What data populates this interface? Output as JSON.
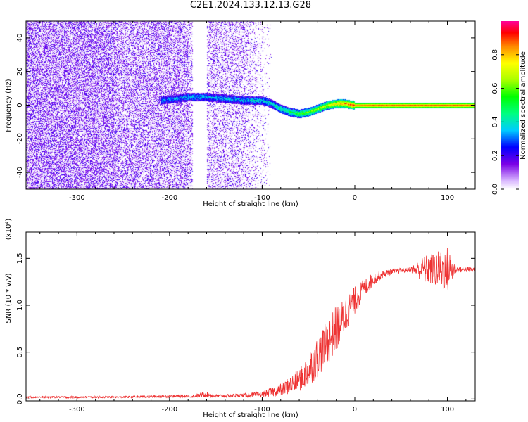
{
  "figure": {
    "title": "C2E1.2024.133.12.13.G28"
  },
  "chart_data": [
    {
      "type": "heatmap",
      "title": "C2E1.2024.133.12.13.G28",
      "xlabel": "Height of straight line (km)",
      "ylabel": "Frequency (Hz)",
      "xlim": [
        -355,
        130
      ],
      "ylim": [
        -50,
        50
      ],
      "xticks": [
        -300,
        -200,
        -100,
        0,
        100
      ],
      "xtick_labels": [
        "-300",
        "-200",
        "-100",
        "0",
        "100"
      ],
      "yticks": [
        -40,
        -20,
        0,
        20,
        40
      ],
      "ytick_labels": [
        "-40",
        "-20",
        "0",
        "20",
        "40"
      ],
      "colorbar": {
        "label": "Normalized spectral amplitude",
        "range": [
          0,
          1
        ],
        "ticks": [
          0.0,
          0.2,
          0.4,
          0.6,
          0.8
        ],
        "tick_labels": [
          "0.0",
          "0.2",
          "0.4",
          "0.6",
          "0.8"
        ]
      },
      "features": {
        "noise_region": {
          "x_range": [
            -355,
            -100
          ],
          "amplitude": "0.1-0.3",
          "gap_x_range": [
            -175,
            -160
          ]
        },
        "line_track": {
          "x": [
            -210,
            -180,
            -160,
            -140,
            -120,
            -100,
            -90,
            -80,
            -70,
            -60,
            -50,
            -40,
            -30,
            -20,
            -10,
            0,
            20,
            50,
            80,
            100,
            130
          ],
          "y": [
            3,
            5,
            5,
            4,
            3,
            3,
            1,
            -2,
            -4,
            -5,
            -4,
            -2,
            0,
            1,
            1,
            0,
            0,
            0,
            0,
            0,
            0
          ],
          "amplitude": [
            0.3,
            0.35,
            0.35,
            0.35,
            0.35,
            0.4,
            0.4,
            0.45,
            0.5,
            0.55,
            0.6,
            0.65,
            0.7,
            0.8,
            0.85,
            0.9,
            0.95,
            0.95,
            0.95,
            0.95,
            0.95
          ]
        }
      }
    },
    {
      "type": "line",
      "xlabel": "Height of straight line (km)",
      "ylabel": "SNR (10 * v/v)",
      "yscale_label": "(x10⁴)",
      "xlim": [
        -355,
        130
      ],
      "ylim": [
        -0.02,
        1.78
      ],
      "xticks": [
        -300,
        -200,
        -100,
        0,
        100
      ],
      "xtick_labels": [
        "-300",
        "-200",
        "-100",
        "0",
        "100"
      ],
      "yticks": [
        0.0,
        0.5,
        1.0,
        1.5
      ],
      "ytick_labels": [
        "0.0",
        "0.5",
        "1.0",
        "1.5"
      ],
      "series": [
        {
          "color": "#ee3333",
          "x": [
            -355,
            -300,
            -250,
            -200,
            -175,
            -160,
            -150,
            -120,
            -100,
            -80,
            -60,
            -50,
            -40,
            -30,
            -20,
            -10,
            0,
            10,
            20,
            30,
            40,
            60,
            75,
            90,
            100,
            110,
            130
          ],
          "y": [
            0.02,
            0.02,
            0.02,
            0.03,
            0.03,
            0.05,
            0.03,
            0.04,
            0.05,
            0.1,
            0.2,
            0.3,
            0.45,
            0.6,
            0.75,
            0.9,
            1.05,
            1.18,
            1.28,
            1.33,
            1.36,
            1.38,
            1.38,
            1.38,
            1.38,
            1.38,
            1.38
          ],
          "noise": [
            0.01,
            0.01,
            0.01,
            0.015,
            0.015,
            0.03,
            0.02,
            0.02,
            0.03,
            0.07,
            0.12,
            0.18,
            0.22,
            0.24,
            0.25,
            0.2,
            0.15,
            0.1,
            0.07,
            0.04,
            0.03,
            0.025,
            0.15,
            0.2,
            0.25,
            0.03,
            0.03
          ]
        }
      ]
    }
  ]
}
